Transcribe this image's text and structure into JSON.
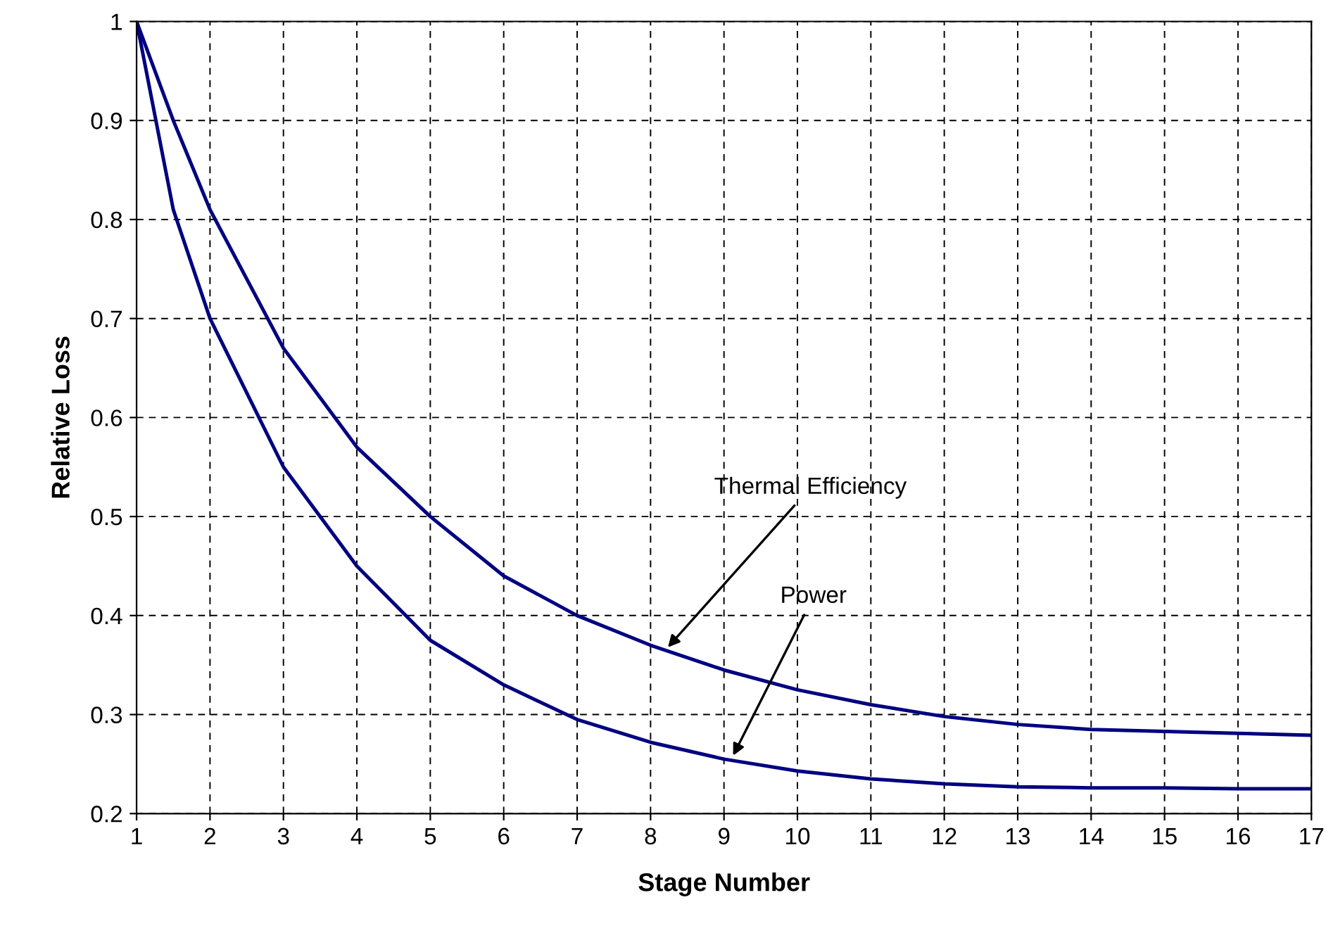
{
  "chart_data": {
    "type": "line",
    "xlabel": "Stage Number",
    "ylabel": "Relative Loss",
    "x": [
      1,
      1.5,
      2,
      3,
      4,
      5,
      6,
      7,
      8,
      9,
      10,
      11,
      12,
      13,
      14,
      15,
      16,
      17
    ],
    "series": [
      {
        "color": "#000080",
        "values": [
          1,
          0.9,
          0.81,
          0.67,
          0.57,
          0.5,
          0.44,
          0.4,
          0.37,
          0.345,
          0.325,
          0.31,
          0.298,
          0.29,
          0.285,
          0.283,
          0.281,
          0.279
        ]
      },
      {
        "color": "#000080",
        "values": [
          1,
          0.81,
          0.7,
          0.55,
          0.45,
          0.375,
          0.33,
          0.295,
          0.272,
          0.255,
          0.243,
          0.235,
          0.23,
          0.227,
          0.226,
          0.226,
          0.225,
          0.225
        ]
      }
    ],
    "annotations": [
      {
        "text": "Thermal Efficiency",
        "x": 8.2,
        "y": 0.365
      },
      {
        "text": "Power",
        "x": 9.1,
        "y": 0.255
      }
    ],
    "xlim": [
      1,
      17
    ],
    "ylim": [
      0.2,
      1
    ],
    "xticks": [
      1,
      2,
      3,
      4,
      5,
      6,
      7,
      8,
      9,
      10,
      11,
      12,
      13,
      14,
      15,
      16,
      17
    ],
    "yticks": [
      0.2,
      0.3,
      0.4,
      0.5,
      0.6,
      0.7,
      0.8,
      0.9,
      1
    ],
    "grid": true,
    "legend": false,
    "marker": "none",
    "line_style": "solid"
  }
}
